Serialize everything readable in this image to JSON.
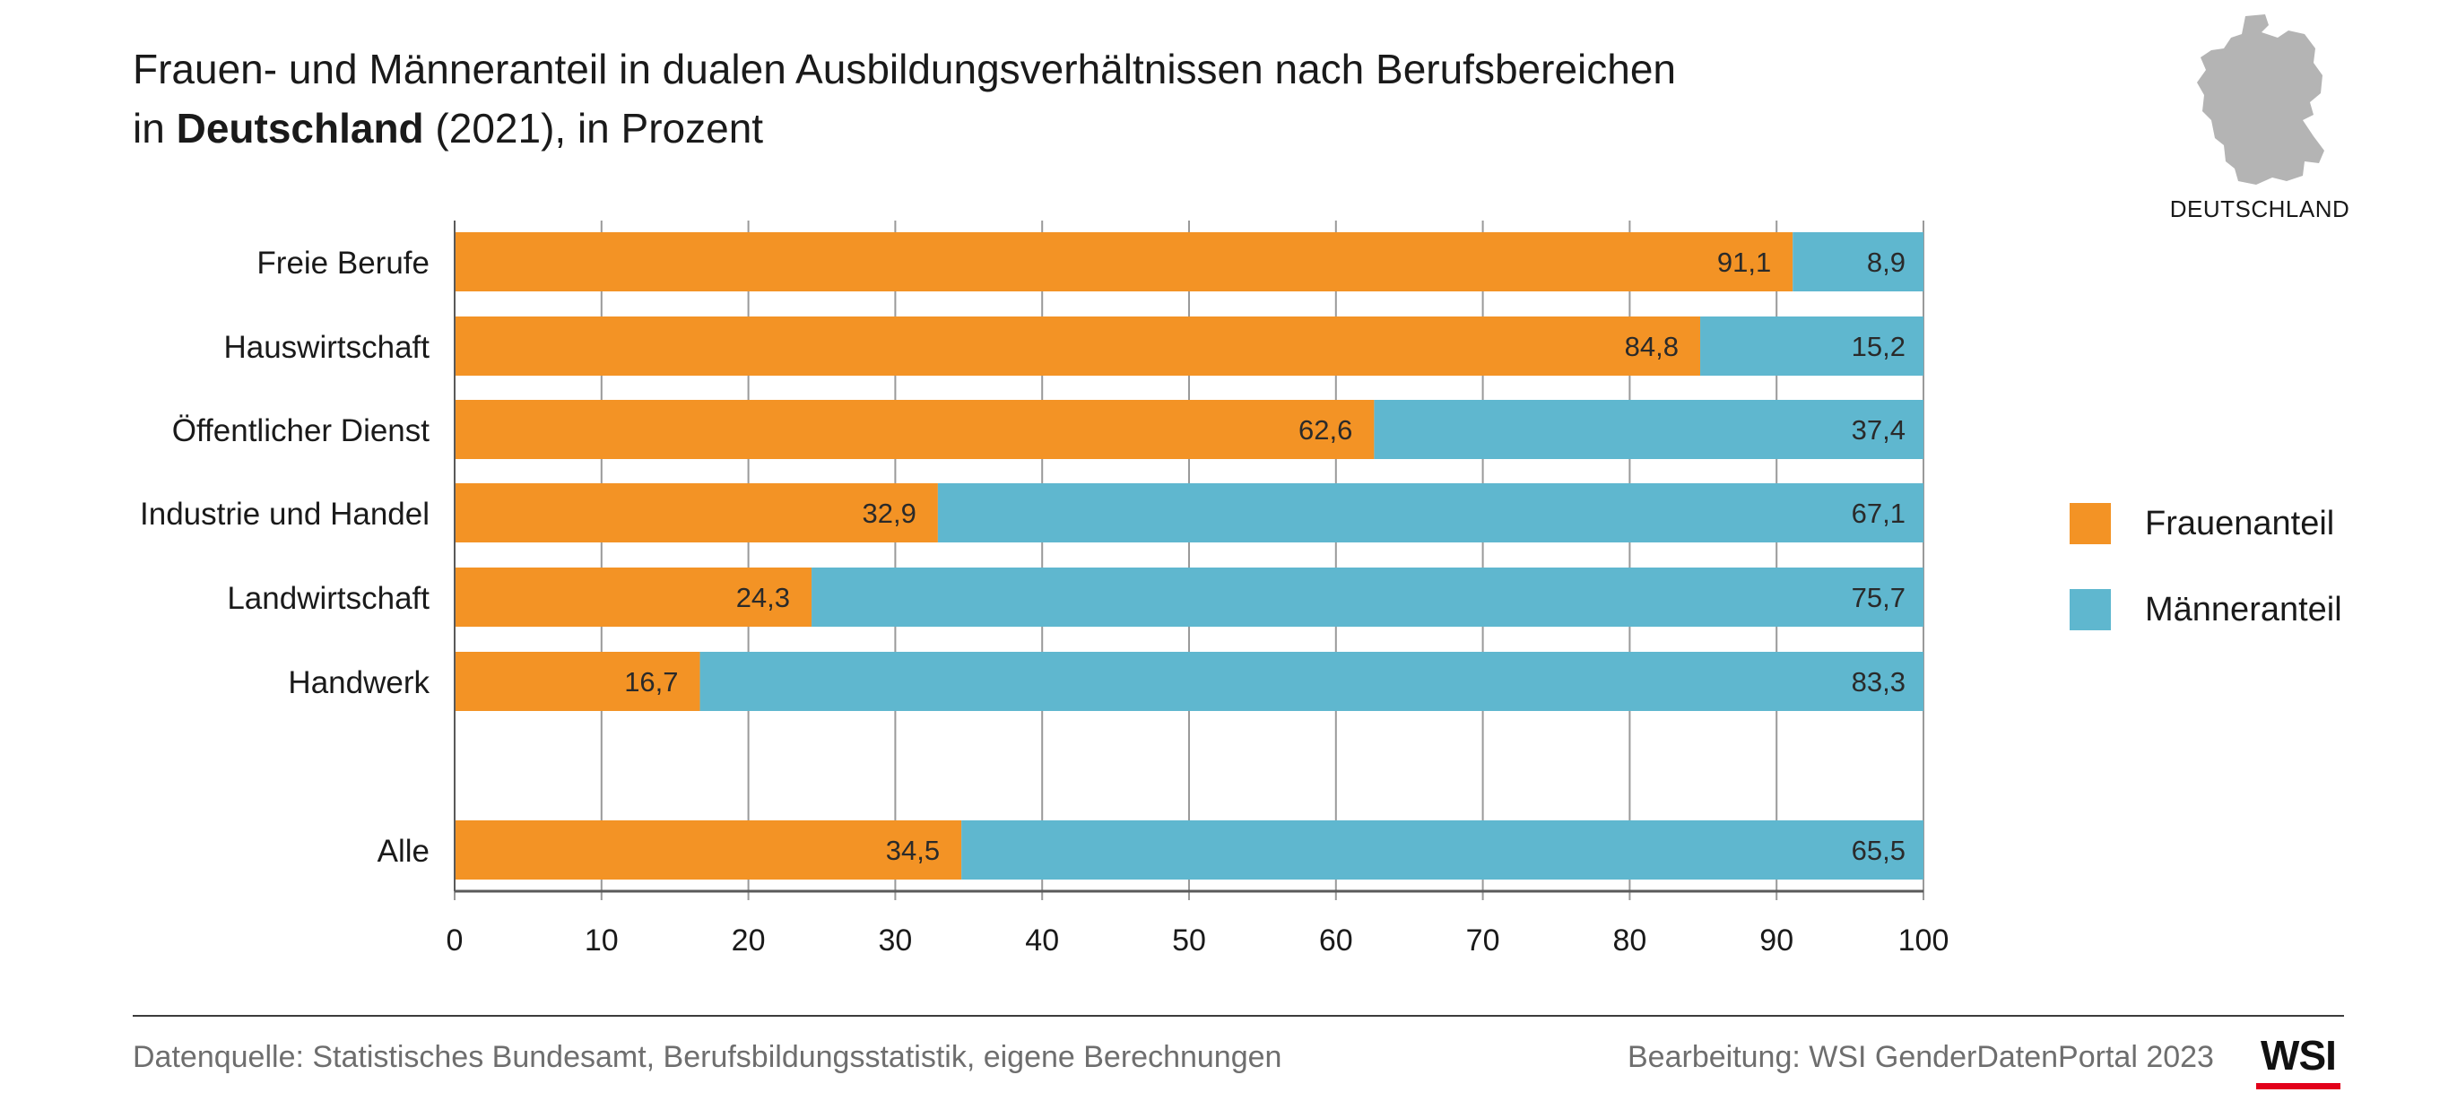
{
  "title": {
    "line1": "Frauen- und Männeranteil in dualen Ausbildungsverhältnissen nach Berufsbereichen",
    "line2_prefix": "in ",
    "line2_bold": "Deutschland",
    "line2_suffix": " (2021), in Prozent"
  },
  "map": {
    "label": "DEUTSCHLAND",
    "icon": "germany-map-icon",
    "color": "#b4b4b4"
  },
  "legend": [
    {
      "label": "Frauenanteil",
      "color": "#f39325"
    },
    {
      "label": "Männeranteil",
      "color": "#5fb7cf"
    }
  ],
  "footer": {
    "source": "Datenquelle: Statistisches Bundesamt, Berufsbildungsstatistik, eigene Berechnungen",
    "credit": "Bearbeitung: WSI GenderDatenPortal 2023",
    "logo": "WSI"
  },
  "chart_data": {
    "type": "bar",
    "orientation": "horizontal",
    "stacked": true,
    "categories": [
      "Freie Berufe",
      "Hauswirtschaft",
      "Öffentlicher Dienst",
      "Industrie und Handel",
      "Landwirtschaft",
      "Handwerk",
      "Alle"
    ],
    "series": [
      {
        "name": "Frauenanteil",
        "color": "#f39325",
        "values": [
          91.1,
          84.8,
          62.6,
          32.9,
          24.3,
          16.7,
          34.5
        ],
        "labels": [
          "91,1",
          "84,8",
          "62,6",
          "32,9",
          "24,3",
          "16,7",
          "34,5"
        ]
      },
      {
        "name": "Männeranteil",
        "color": "#5fb7cf",
        "values": [
          8.9,
          15.2,
          37.4,
          67.1,
          75.7,
          83.3,
          65.5
        ],
        "labels": [
          "8,9",
          "15,2",
          "37,4",
          "67,1",
          "75,7",
          "83,3",
          "65,5"
        ]
      }
    ],
    "xlim": [
      0,
      100
    ],
    "xticks": [
      0,
      10,
      20,
      30,
      40,
      50,
      60,
      70,
      80,
      90,
      100
    ],
    "xtick_labels": [
      "0",
      "10",
      "20",
      "30",
      "40",
      "50",
      "60",
      "70",
      "80",
      "90",
      "100"
    ],
    "grid": "vertical",
    "legend_position": "right"
  }
}
